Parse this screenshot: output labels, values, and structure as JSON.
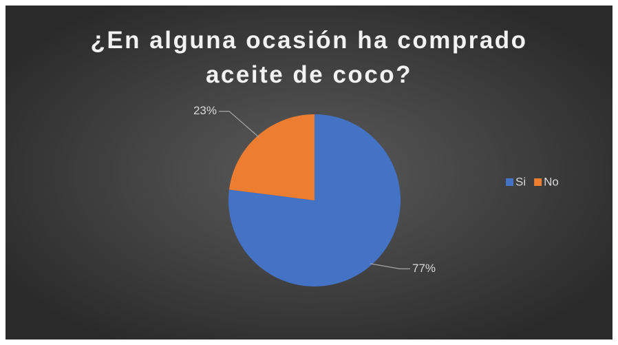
{
  "chart_data": {
    "type": "pie",
    "title": "¿En alguna ocasión ha comprado aceite de coco?",
    "categories": [
      "Si",
      "No"
    ],
    "values": [
      77,
      23
    ],
    "value_labels": [
      "77%",
      "23%"
    ],
    "colors": [
      "#4472c4",
      "#ed7d31"
    ],
    "legend": "right"
  }
}
